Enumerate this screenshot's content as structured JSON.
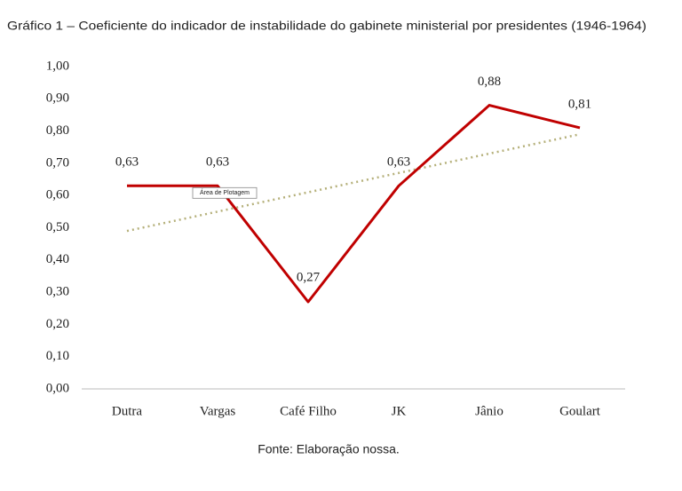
{
  "chart_data": {
    "type": "line",
    "title": "Gráfico 1 – Coeficiente do indicador de instabilidade do gabinete ministerial por presidentes (1946-1964)",
    "categories": [
      "Dutra",
      "Vargas",
      "Café Filho",
      "JK",
      "Jânio",
      "Goulart"
    ],
    "values": [
      0.63,
      0.63,
      0.27,
      0.63,
      0.88,
      0.81
    ],
    "value_labels": [
      "0,63",
      "0,63",
      "0,27",
      "0,63",
      "0,88",
      "0,81"
    ],
    "color": "#c00000",
    "trendline": {
      "values": [
        0.49,
        0.79
      ],
      "color": "#b5b07a"
    },
    "annotation": "Área de Plotagem",
    "ylim": [
      0,
      1
    ],
    "yticks": [
      {
        "value": 0,
        "label": "0,00"
      },
      {
        "value": 0.1,
        "label": "0,10"
      },
      {
        "value": 0.2,
        "label": "0,20"
      },
      {
        "value": 0.3,
        "label": "0,30"
      },
      {
        "value": 0.4,
        "label": "0,40"
      },
      {
        "value": 0.5,
        "label": "0,50"
      },
      {
        "value": 0.6,
        "label": "0,60"
      },
      {
        "value": 0.7,
        "label": "0,70"
      },
      {
        "value": 0.8,
        "label": "0,80"
      },
      {
        "value": 0.9,
        "label": "0,90"
      },
      {
        "value": 1,
        "label": "1,00"
      }
    ],
    "source": "Fonte: Elaboração nossa."
  }
}
